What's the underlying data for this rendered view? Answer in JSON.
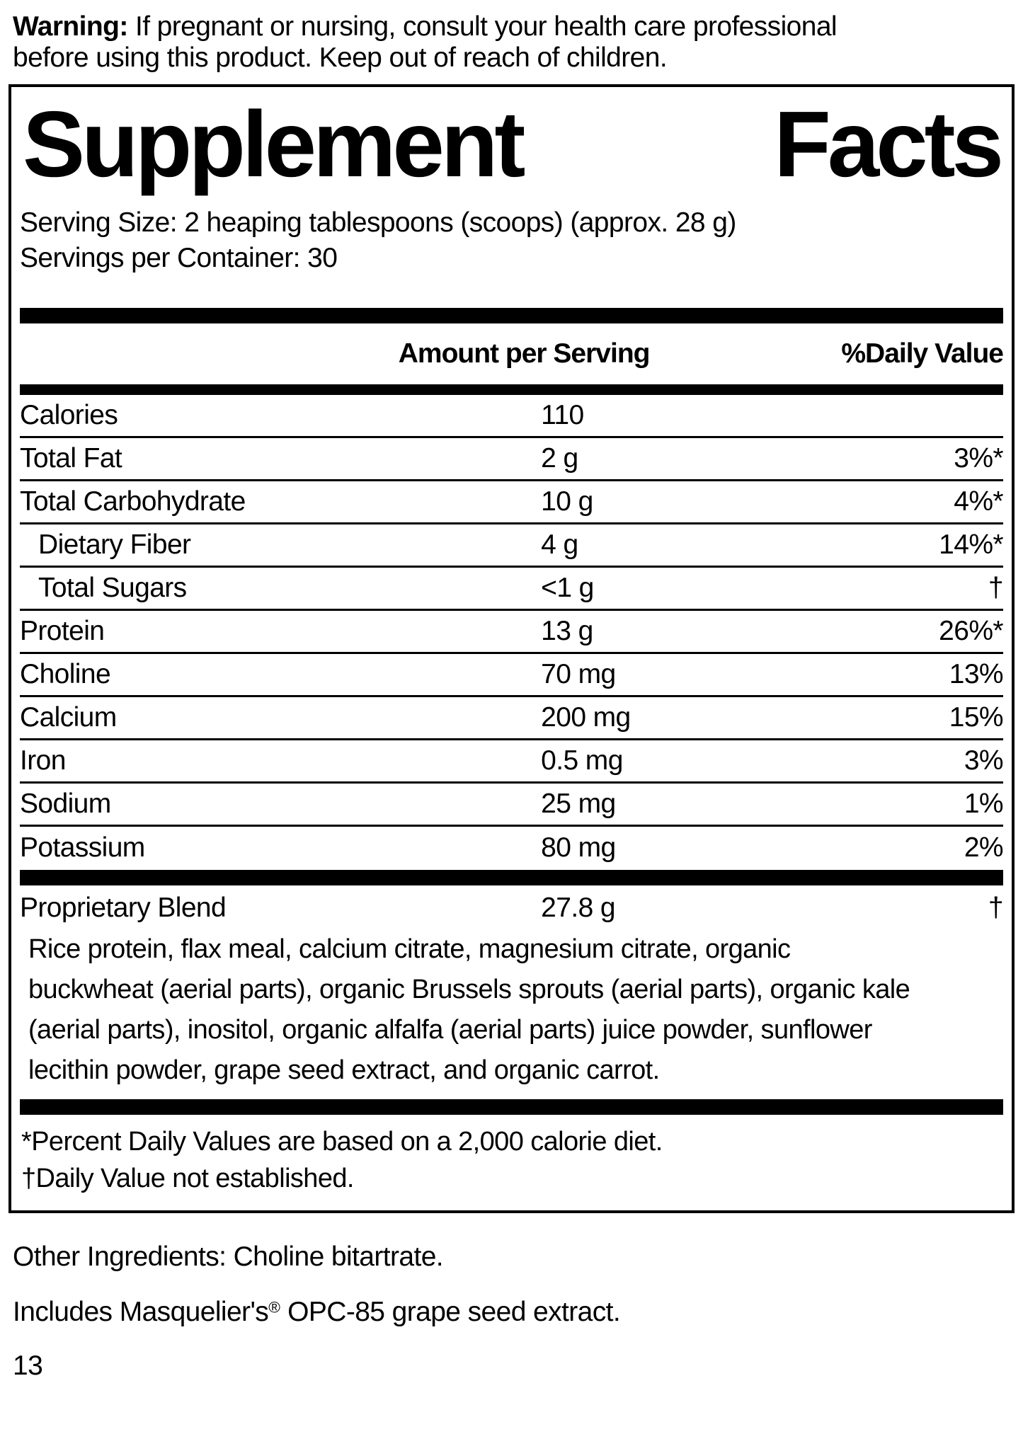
{
  "warning": {
    "prefix": "Warning:",
    "line1_rest": " If pregnant or nursing, consult your health care professional",
    "line2": "before using this product. Keep out of reach of children."
  },
  "panel": {
    "title_words": [
      "Supplement",
      "Facts"
    ],
    "serving_size": "Serving Size: 2 heaping tablespoons (scoops) (approx. 28 g)",
    "servings_per_container": "Servings per Container: 30",
    "columns": {
      "amount": "Amount per Serving",
      "daily_value": "%Daily Value"
    },
    "rows": [
      {
        "label": "Calories",
        "amount": "110",
        "dv": ""
      },
      {
        "label": "Total Fat",
        "amount": "2 g",
        "dv": "3%*"
      },
      {
        "label": "Total Carbohydrate",
        "amount": "10 g",
        "dv": "4%*"
      },
      {
        "label": "Dietary Fiber",
        "amount": "4 g",
        "dv": "14%*"
      },
      {
        "label": "Total Sugars",
        "amount": "<1 g",
        "dv": "†"
      },
      {
        "label": "Protein",
        "amount": "13 g",
        "dv": "26%*"
      },
      {
        "label": "Choline",
        "amount": "70 mg",
        "dv": "13%"
      },
      {
        "label": "Calcium",
        "amount": "200 mg",
        "dv": "15%"
      },
      {
        "label": "Iron",
        "amount": "0.5 mg",
        "dv": "3%"
      },
      {
        "label": "Sodium",
        "amount": "25 mg",
        "dv": "1%"
      },
      {
        "label": "Potassium",
        "amount": "80 mg",
        "dv": "2%"
      }
    ],
    "proprietary_blend": {
      "label": "Proprietary Blend",
      "amount": "27.8 g",
      "dv": "†",
      "ingredient_lines": [
        "Rice protein, flax meal, calcium citrate, magnesium citrate, organic",
        "buckwheat (aerial parts), organic Brussels sprouts (aerial parts), organic kale",
        "(aerial parts), inositol, organic alfalfa (aerial parts) juice powder, sunflower",
        "lecithin powder, grape seed extract, and organic carrot."
      ]
    },
    "footnotes": [
      "*Percent Daily Values are based on a 2,000 calorie diet.",
      "†Daily Value not established."
    ]
  },
  "below_panel": {
    "other_ingredients": "Other Ingredients: Choline bitartrate.",
    "includes": {
      "pre": "Includes Masquelier's",
      "sup": "®",
      "post": " OPC-85 grape seed extract."
    },
    "page_number": "13"
  },
  "colors": {
    "ink": "#000000",
    "paper": "#ffffff"
  }
}
